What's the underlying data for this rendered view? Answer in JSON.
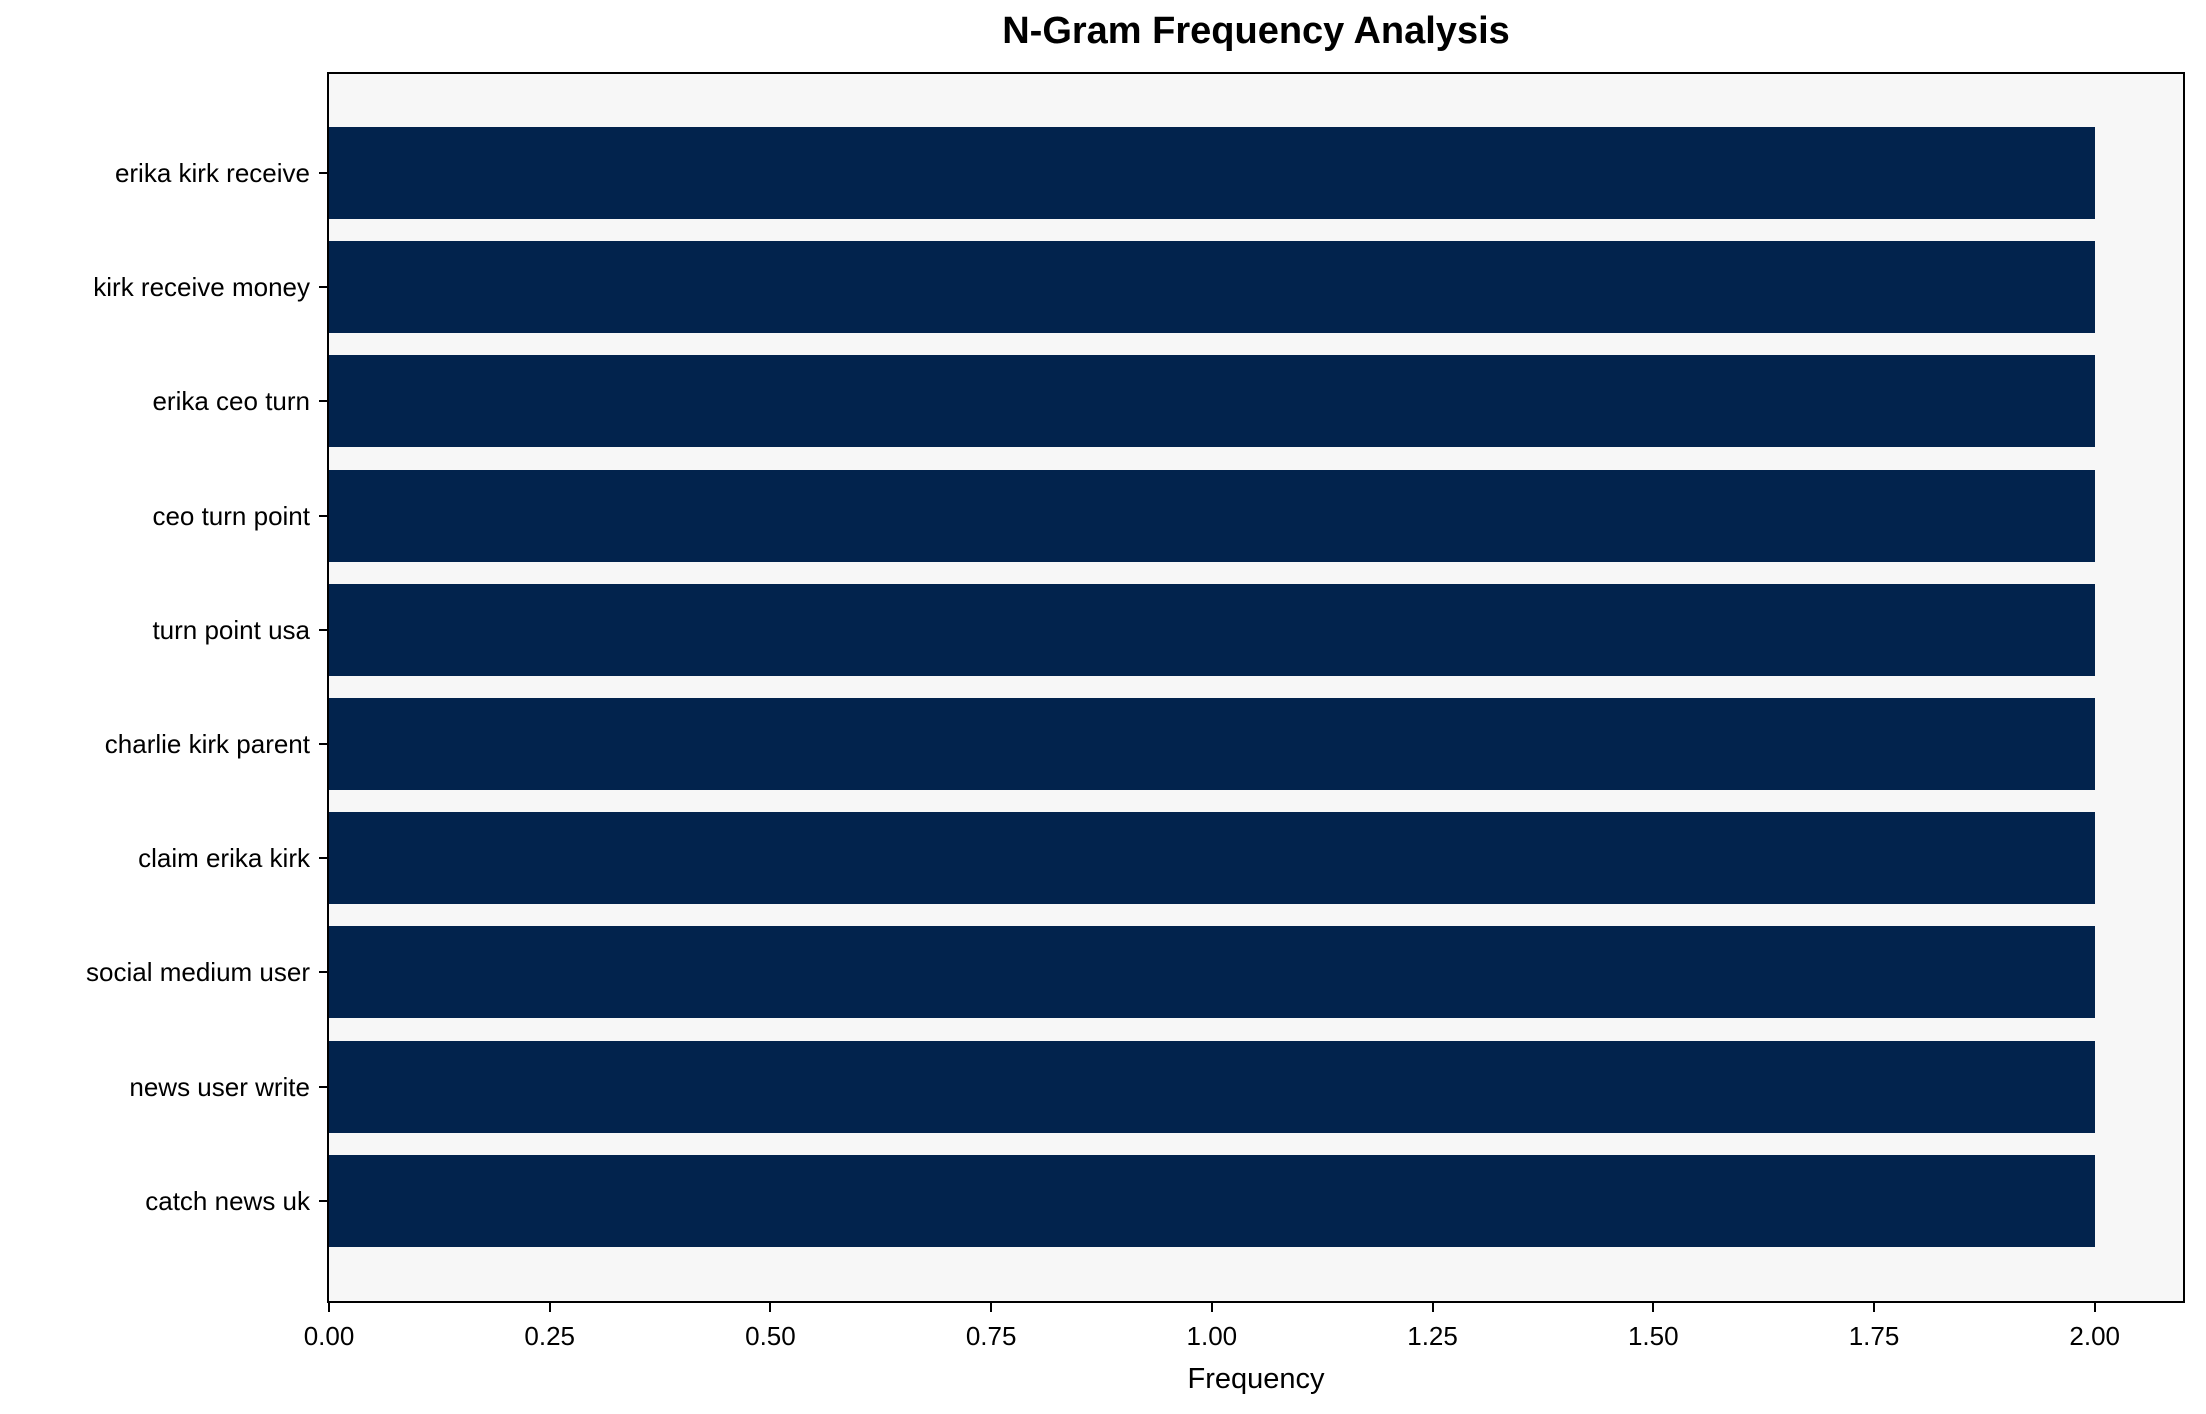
{
  "chart_data": {
    "type": "bar",
    "orientation": "horizontal",
    "title": "N-Gram Frequency Analysis",
    "categories": [
      "erika kirk receive",
      "kirk receive money",
      "erika ceo turn",
      "ceo turn point",
      "turn point usa",
      "charlie kirk parent",
      "claim erika kirk",
      "social medium user",
      "news user write",
      "catch news uk"
    ],
    "values": [
      2,
      2,
      2,
      2,
      2,
      2,
      2,
      2,
      2,
      2
    ],
    "xlabel": "Frequency",
    "xlim": [
      0,
      2.1
    ],
    "xticks": [
      {
        "value": 0.0,
        "label": "0.00"
      },
      {
        "value": 0.25,
        "label": "0.25"
      },
      {
        "value": 0.5,
        "label": "0.50"
      },
      {
        "value": 0.75,
        "label": "0.75"
      },
      {
        "value": 1.0,
        "label": "1.00"
      },
      {
        "value": 1.25,
        "label": "1.25"
      },
      {
        "value": 1.5,
        "label": "1.50"
      },
      {
        "value": 1.75,
        "label": "1.75"
      },
      {
        "value": 2.0,
        "label": "2.00"
      }
    ],
    "grid": false,
    "legend": false,
    "colors": {
      "bar": "#02234d",
      "plot_background": "#f7f7f7",
      "figure_background": "#ffffff",
      "spine": "#000000",
      "text": "#000000"
    }
  }
}
